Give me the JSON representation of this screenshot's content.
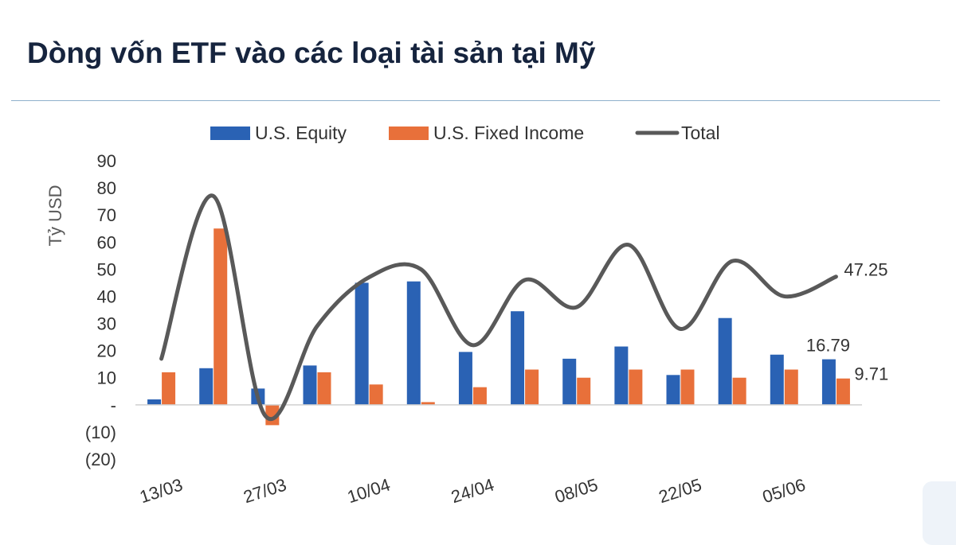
{
  "page": {
    "title": "Dòng vốn ETF vào các loại tài sản tại Mỹ"
  },
  "chart_data": {
    "type": "bar",
    "title": "",
    "ylabel": "Tỷ USD",
    "xlabel": "",
    "ylim": [
      -20,
      90
    ],
    "yticks": [
      {
        "value": 90,
        "label": "90"
      },
      {
        "value": 80,
        "label": "80"
      },
      {
        "value": 70,
        "label": "70"
      },
      {
        "value": 60,
        "label": "60"
      },
      {
        "value": 50,
        "label": "50"
      },
      {
        "value": 40,
        "label": "40"
      },
      {
        "value": 30,
        "label": "30"
      },
      {
        "value": 20,
        "label": "20"
      },
      {
        "value": 10,
        "label": "10"
      },
      {
        "value": 0,
        "label": "-"
      },
      {
        "value": -10,
        "label": "(10)"
      },
      {
        "value": -20,
        "label": "(20)"
      }
    ],
    "xtick_labels": [
      "13/03",
      "27/03",
      "10/04",
      "24/04",
      "08/05",
      "22/05",
      "05/06"
    ],
    "point_count": 14,
    "legend_position": "top",
    "series": [
      {
        "name": "U.S. Equity",
        "kind": "bar",
        "color": "#2a62b4",
        "values": [
          2,
          13.5,
          6,
          14.5,
          45,
          45.5,
          19.5,
          34.5,
          17,
          21.5,
          11,
          32,
          18.5,
          16.79
        ]
      },
      {
        "name": "U.S. Fixed Income",
        "kind": "bar",
        "color": "#e8703a",
        "values": [
          12,
          65,
          -7.5,
          12,
          7.5,
          1,
          6.5,
          13,
          10,
          13,
          13,
          10,
          13,
          9.71
        ]
      },
      {
        "name": "Total",
        "kind": "line",
        "color": "#595959",
        "values": [
          17,
          77,
          -4,
          29,
          47,
          50,
          22,
          46,
          36,
          59,
          28,
          53,
          40,
          47.25
        ]
      }
    ],
    "annotations": [
      {
        "series": "Total",
        "index": 13,
        "text": "47.25"
      },
      {
        "series": "U.S. Equity",
        "index": 13,
        "text": "16.79"
      },
      {
        "series": "U.S. Fixed Income",
        "index": 13,
        "text": "9.71"
      }
    ]
  }
}
